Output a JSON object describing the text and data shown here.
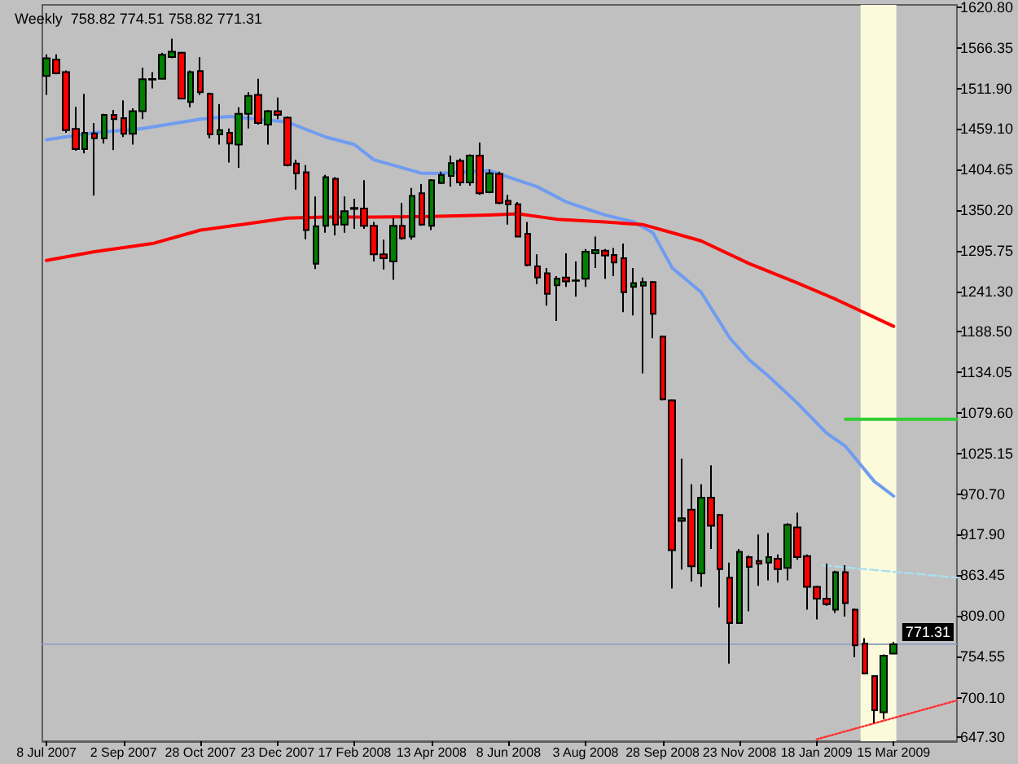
{
  "chart_data": {
    "type": "candlestick",
    "title": "Weekly  758.82 774.51 758.82 771.31",
    "x": [
      "2007-07-08",
      "2007-07-15",
      "2007-07-22",
      "2007-07-29",
      "2007-08-05",
      "2007-08-12",
      "2007-08-19",
      "2007-08-26",
      "2007-09-02",
      "2007-09-09",
      "2007-09-16",
      "2007-09-23",
      "2007-09-30",
      "2007-10-07",
      "2007-10-14",
      "2007-10-21",
      "2007-10-28",
      "2007-11-04",
      "2007-11-11",
      "2007-11-18",
      "2007-11-25",
      "2007-12-02",
      "2007-12-09",
      "2007-12-16",
      "2007-12-23",
      "2007-12-30",
      "2008-01-06",
      "2008-01-13",
      "2008-01-20",
      "2008-01-27",
      "2008-02-03",
      "2008-02-10",
      "2008-02-17",
      "2008-02-24",
      "2008-03-02",
      "2008-03-09",
      "2008-03-16",
      "2008-03-23",
      "2008-03-30",
      "2008-04-06",
      "2008-04-13",
      "2008-04-20",
      "2008-04-27",
      "2008-05-04",
      "2008-05-11",
      "2008-05-18",
      "2008-05-25",
      "2008-06-01",
      "2008-06-08",
      "2008-06-15",
      "2008-06-22",
      "2008-06-29",
      "2008-07-06",
      "2008-07-13",
      "2008-07-20",
      "2008-07-27",
      "2008-08-03",
      "2008-08-10",
      "2008-08-17",
      "2008-08-24",
      "2008-08-31",
      "2008-09-07",
      "2008-09-14",
      "2008-09-21",
      "2008-09-28",
      "2008-10-05",
      "2008-10-12",
      "2008-10-19",
      "2008-10-26",
      "2008-11-02",
      "2008-11-09",
      "2008-11-16",
      "2008-11-23",
      "2008-11-30",
      "2008-12-07",
      "2008-12-14",
      "2008-12-21",
      "2008-12-28",
      "2009-01-04",
      "2009-01-11",
      "2009-01-18",
      "2009-01-25",
      "2009-02-01",
      "2009-02-08",
      "2009-02-15",
      "2009-02-22",
      "2009-03-01",
      "2009-03-08",
      "2009-03-15"
    ],
    "ohlc": [
      [
        1529.2,
        1558.1,
        1504.0,
        1553.0
      ],
      [
        1550.9,
        1558.1,
        1531.4,
        1532.9
      ],
      [
        1534.3,
        1536.5,
        1453.5,
        1457.1
      ],
      [
        1458.6,
        1488.1,
        1429.7,
        1431.9
      ],
      [
        1431.9,
        1505.5,
        1426.1,
        1453.5
      ],
      [
        1452.8,
        1466.5,
        1369.9,
        1446.3
      ],
      [
        1446.3,
        1478.8,
        1439.1,
        1477.3
      ],
      [
        1477.3,
        1483.8,
        1430.5,
        1471.6
      ],
      [
        1473.0,
        1496.8,
        1447.8,
        1452.1
      ],
      [
        1452.1,
        1486.0,
        1437.7,
        1482.4
      ],
      [
        1482.4,
        1540.1,
        1471.6,
        1524.9
      ],
      [
        1524.5,
        1534.3,
        1512.7,
        1525.3
      ],
      [
        1525.6,
        1560.3,
        1524.9,
        1557.4
      ],
      [
        1554.5,
        1579.0,
        1553.0,
        1561.7
      ],
      [
        1560.3,
        1561.7,
        1498.2,
        1499.0
      ],
      [
        1494.6,
        1536.5,
        1487.4,
        1534.3
      ],
      [
        1535.7,
        1554.5,
        1504.0,
        1507.6
      ],
      [
        1505.5,
        1506.9,
        1446.3,
        1451.4
      ],
      [
        1451.4,
        1491.7,
        1437.7,
        1457.1
      ],
      [
        1453.5,
        1459.3,
        1413.9,
        1439.1
      ],
      [
        1437.7,
        1487.4,
        1406.7,
        1478.8
      ],
      [
        1478.8,
        1507.6,
        1459.3,
        1502.6
      ],
      [
        1504.0,
        1525.6,
        1464.4,
        1466.5
      ],
      [
        1464.4,
        1483.8,
        1437.7,
        1482.4
      ],
      [
        1482.4,
        1500.4,
        1471.6,
        1477.3
      ],
      [
        1473.7,
        1475.2,
        1408.8,
        1410.3
      ],
      [
        1412.4,
        1417.5,
        1377.8,
        1399.4
      ],
      [
        1400.9,
        1410.3,
        1311.5,
        1323.7
      ],
      [
        1279.0,
        1368.4,
        1271.8,
        1328.8
      ],
      [
        1329.5,
        1397.3,
        1320.1,
        1394.4
      ],
      [
        1392.2,
        1394.4,
        1316.5,
        1330.9
      ],
      [
        1330.9,
        1368.4,
        1320.1,
        1349.0
      ],
      [
        1351.9,
        1365.5,
        1325.2,
        1353.3
      ],
      [
        1352.6,
        1390.1,
        1325.2,
        1329.5
      ],
      [
        1329.5,
        1334.5,
        1281.9,
        1291.3
      ],
      [
        1291.3,
        1310.8,
        1271.1,
        1286.2
      ],
      [
        1281.9,
        1339.6,
        1257.4,
        1329.5
      ],
      [
        1329.5,
        1359.8,
        1310.8,
        1312.9
      ],
      [
        1315.1,
        1380.0,
        1310.8,
        1369.2
      ],
      [
        1372.8,
        1385.0,
        1329.5,
        1330.9
      ],
      [
        1329.5,
        1391.5,
        1323.7,
        1390.1
      ],
      [
        1386.5,
        1401.6,
        1385.0,
        1397.3
      ],
      [
        1395.8,
        1423.2,
        1381.4,
        1413.1
      ],
      [
        1416.0,
        1418.9,
        1382.9,
        1387.2
      ],
      [
        1387.2,
        1424.7,
        1382.9,
        1423.2
      ],
      [
        1423.2,
        1440.6,
        1370.6,
        1372.8
      ],
      [
        1374.2,
        1404.5,
        1372.8,
        1399.4
      ],
      [
        1398.7,
        1401.6,
        1358.3,
        1359.8
      ],
      [
        1362.7,
        1370.6,
        1330.9,
        1358.3
      ],
      [
        1358.3,
        1361.2,
        1314.4,
        1315.1
      ],
      [
        1318.7,
        1334.5,
        1275.4,
        1276.9
      ],
      [
        1275.4,
        1291.3,
        1251.6,
        1260.3
      ],
      [
        1266.1,
        1273.3,
        1222.8,
        1238.6
      ],
      [
        1250.2,
        1262.4,
        1202.6,
        1258.8
      ],
      [
        1260.3,
        1292.7,
        1248.0,
        1255.2
      ],
      [
        1256.7,
        1281.9,
        1235.0,
        1256.0
      ],
      [
        1258.8,
        1298.5,
        1248.0,
        1294.9
      ],
      [
        1292.7,
        1315.1,
        1273.3,
        1297.1
      ],
      [
        1296.3,
        1298.5,
        1258.8,
        1289.8
      ],
      [
        1290.6,
        1299.9,
        1262.4,
        1280.5
      ],
      [
        1286.2,
        1305.7,
        1214.1,
        1240.8
      ],
      [
        1248.0,
        1273.3,
        1209.8,
        1253.1
      ],
      [
        1249.5,
        1260.3,
        1132.6,
        1254.5
      ],
      [
        1254.5,
        1255.9,
        1179.5,
        1212.0
      ],
      [
        1181.7,
        1183.1,
        1096.6,
        1098.0
      ],
      [
        1096.6,
        1098.0,
        845.6,
        896.8
      ],
      [
        935.8,
        1018.7,
        870.9,
        939.4
      ],
      [
        950.9,
        984.8,
        855.0,
        875.2
      ],
      [
        865.8,
        984.8,
        847.8,
        966.8
      ],
      [
        966.8,
        1010.1,
        898.3,
        929.3
      ],
      [
        943.7,
        945.2,
        820.4,
        871.6
      ],
      [
        860.1,
        880.3,
        745.4,
        799.5
      ],
      [
        799.5,
        898.3,
        798.8,
        894.7
      ],
      [
        887.5,
        889.6,
        815.4,
        874.5
      ],
      [
        882.4,
        917.7,
        849.2,
        878.8
      ],
      [
        880.2,
        919.9,
        856.5,
        887.5
      ],
      [
        885.3,
        891.1,
        853.6,
        871.6
      ],
      [
        873.0,
        932.9,
        856.5,
        930.7
      ],
      [
        927.1,
        946.6,
        883.9,
        887.5
      ],
      [
        888.9,
        891.1,
        817.5,
        847.8
      ],
      [
        847.8,
        849.2,
        804.5,
        832.0
      ],
      [
        832.0,
        878.8,
        822.6,
        824.7
      ],
      [
        817.5,
        869.4,
        813.2,
        867.3
      ],
      [
        867.3,
        876.7,
        808.1,
        826.2
      ],
      [
        817.5,
        819.0,
        754.1,
        770.0
      ],
      [
        772.1,
        779.3,
        731.0,
        732.4
      ],
      [
        728.8,
        729.5,
        666.1,
        683.4
      ],
      [
        680.5,
        757.7,
        671.1,
        756.2
      ],
      [
        758.82,
        774.51,
        758.82,
        771.31
      ]
    ],
    "series": [
      {
        "type": "line",
        "color": "#6f9cf0",
        "x": [
          "2007-07-08",
          "2007-08-12",
          "2007-09-16",
          "2007-10-28",
          "2007-11-18",
          "2007-12-30",
          "2008-01-27",
          "2008-02-17",
          "2008-03-02",
          "2008-03-23",
          "2008-04-06",
          "2008-04-20",
          "2008-05-25",
          "2008-06-15",
          "2008-06-29",
          "2008-07-20",
          "2008-08-17",
          "2008-09-07",
          "2008-09-21",
          "2008-10-05",
          "2008-10-26",
          "2008-11-16",
          "2008-11-30",
          "2008-12-14",
          "2009-01-04",
          "2009-01-25",
          "2009-02-08",
          "2009-03-01",
          "2009-03-15"
        ],
        "values": [
          1444.2,
          1453.5,
          1459.3,
          1471.6,
          1475.2,
          1467.9,
          1447.8,
          1437.7,
          1417.5,
          1406.7,
          1399.4,
          1399.4,
          1403.0,
          1390.1,
          1381.4,
          1361.2,
          1343.9,
          1334.5,
          1320.1,
          1273.3,
          1240.8,
          1179.5,
          1150.7,
          1129.0,
          1093.0,
          1053.3,
          1035.3,
          988.4,
          969.0
        ]
      },
      {
        "type": "line",
        "color": "#ff0000",
        "x": [
          "2007-07-08",
          "2007-08-12",
          "2007-09-23",
          "2007-10-28",
          "2007-12-02",
          "2007-12-30",
          "2008-01-27",
          "2008-03-02",
          "2008-04-13",
          "2008-05-25",
          "2008-06-15",
          "2008-07-13",
          "2008-08-17",
          "2008-09-14",
          "2008-10-05",
          "2008-10-26",
          "2008-11-30",
          "2009-01-04",
          "2009-02-01",
          "2009-03-15"
        ],
        "values": [
          1283.3,
          1294.9,
          1305.7,
          1323.7,
          1332.4,
          1339.6,
          1341.0,
          1341.0,
          1341.8,
          1343.9,
          1345.4,
          1338.2,
          1334.5,
          1330.9,
          1320.1,
          1309.3,
          1279.0,
          1253.1,
          1231.4,
          1195.4
        ]
      },
      {
        "type": "line",
        "color": "#32cd32",
        "x": [
          "2009-02-08",
          "2009-04-30"
        ],
        "values": [
          1071.3,
          1071.3
        ]
      },
      {
        "type": "line",
        "color": "#a8e0f0",
        "line_style": "dashed",
        "x": [
          "2009-01-23",
          "2009-04-30"
        ],
        "values": [
          876.6,
          860.2
        ]
      },
      {
        "type": "line",
        "color": "#ff3030",
        "line_style": "dotted",
        "x": [
          "2009-01-18",
          "2009-04-30"
        ],
        "values": [
          644.5,
          696.4
        ]
      }
    ],
    "xlim": [
      "2007-07-05",
      "2009-04-30"
    ],
    "xticks": [
      {
        "value": "2007-07-08",
        "label": "8 Jul 2007"
      },
      {
        "value": "2007-09-02",
        "label": "2 Sep 2007"
      },
      {
        "value": "2007-10-28",
        "label": "28 Oct 2007"
      },
      {
        "value": "2007-12-23",
        "label": "23 Dec 2007"
      },
      {
        "value": "2008-02-17",
        "label": "17 Feb 2008"
      },
      {
        "value": "2008-04-13",
        "label": "13 Apr 2008"
      },
      {
        "value": "2008-06-08",
        "label": "8 Jun 2008"
      },
      {
        "value": "2008-08-03",
        "label": "3 Aug 2008"
      },
      {
        "value": "2008-09-28",
        "label": "28 Sep 2008"
      },
      {
        "value": "2008-11-23",
        "label": "23 Nov 2008"
      },
      {
        "value": "2009-01-18",
        "label": "18 Jan 2009"
      },
      {
        "value": "2009-03-15",
        "label": "15 Mar 2009"
      }
    ],
    "ylim": [
      642,
      1624
    ],
    "yticks": [
      {
        "value": 1620.8,
        "label": "1620.80"
      },
      {
        "value": 1566.35,
        "label": "1566.35"
      },
      {
        "value": 1511.9,
        "label": "1511.90"
      },
      {
        "value": 1459.1,
        "label": "1459.10"
      },
      {
        "value": 1404.65,
        "label": "1404.65"
      },
      {
        "value": 1350.2,
        "label": "1350.20"
      },
      {
        "value": 1295.75,
        "label": "1295.75"
      },
      {
        "value": 1241.3,
        "label": "1241.30"
      },
      {
        "value": 1188.5,
        "label": "1188.50"
      },
      {
        "value": 1134.05,
        "label": "1134.05"
      },
      {
        "value": 1079.6,
        "label": "1079.60"
      },
      {
        "value": 1025.15,
        "label": "1025.15"
      },
      {
        "value": 970.7,
        "label": "970.70"
      },
      {
        "value": 917.9,
        "label": "917.90"
      },
      {
        "value": 863.45,
        "label": "863.45"
      },
      {
        "value": 809,
        "label": "809.00"
      },
      {
        "value": 754.55,
        "label": "754.55"
      },
      {
        "value": 700.1,
        "label": "700.10"
      },
      {
        "value": 647.3,
        "label": "647.30"
      }
    ],
    "ref_lines": [
      {
        "axis": "y",
        "value": 771.31,
        "label": "771.31",
        "color": "#98a4c4"
      }
    ],
    "bands": [
      {
        "axis": "x",
        "from": "2009-02-19",
        "to": "2009-03-17",
        "color": "#fbfbdc"
      }
    ],
    "marker": "none",
    "line_style": "solid"
  }
}
